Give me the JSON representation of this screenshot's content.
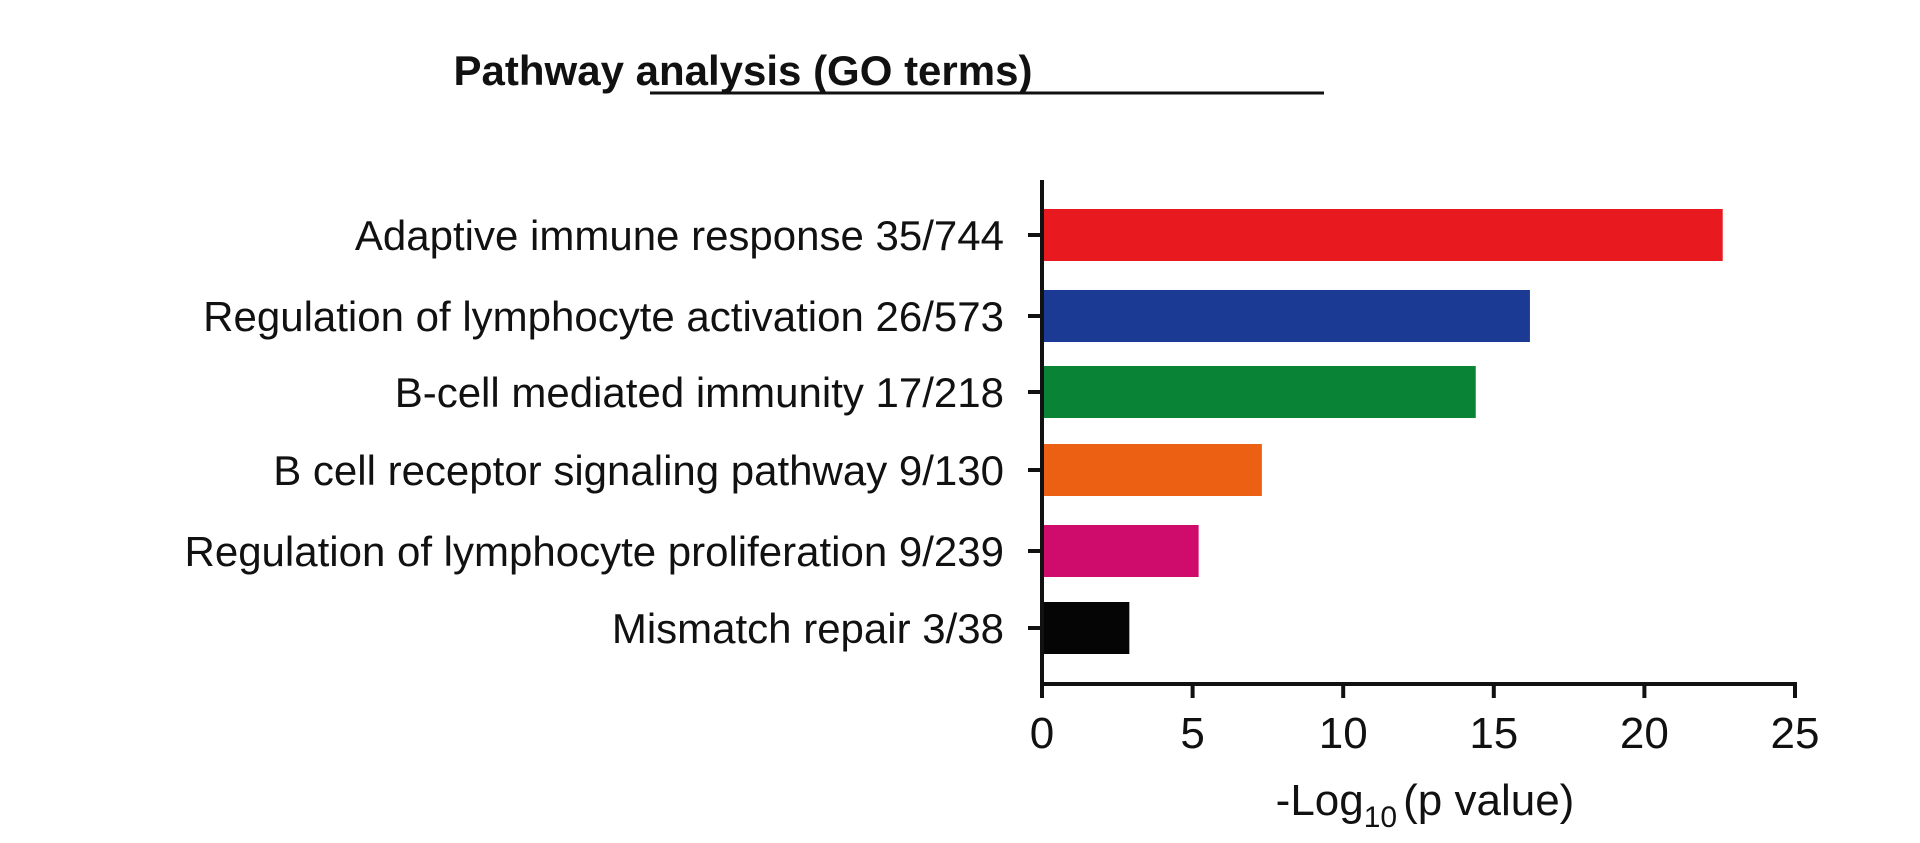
{
  "chart_data": {
    "type": "bar",
    "orientation": "horizontal",
    "title": "Pathway analysis (GO terms)",
    "xlabel": "-Log10 (p value)",
    "xlabel_parts": {
      "main": "-Log",
      "sub": "10",
      "rest": "(p value)"
    },
    "ylabel": "",
    "xlim": [
      0,
      25
    ],
    "xticks": [
      "0",
      "5",
      "10",
      "15",
      "20",
      "25"
    ],
    "grid": false,
    "categories": [
      "Adaptive immune response 35/744",
      "Regulation of lymphocyte activation 26/573",
      "B-cell mediated immunity 17/218",
      "B cell receptor signaling pathway 9/130",
      "Regulation of lymphocyte proliferation 9/239",
      "Mismatch repair 3/38"
    ],
    "values": [
      22.6,
      16.2,
      14.4,
      7.3,
      5.2,
      2.9
    ],
    "colors": [
      "#e8191f",
      "#1b3a94",
      "#098335",
      "#eb6013",
      "#cf0b6b",
      "#050505"
    ]
  }
}
